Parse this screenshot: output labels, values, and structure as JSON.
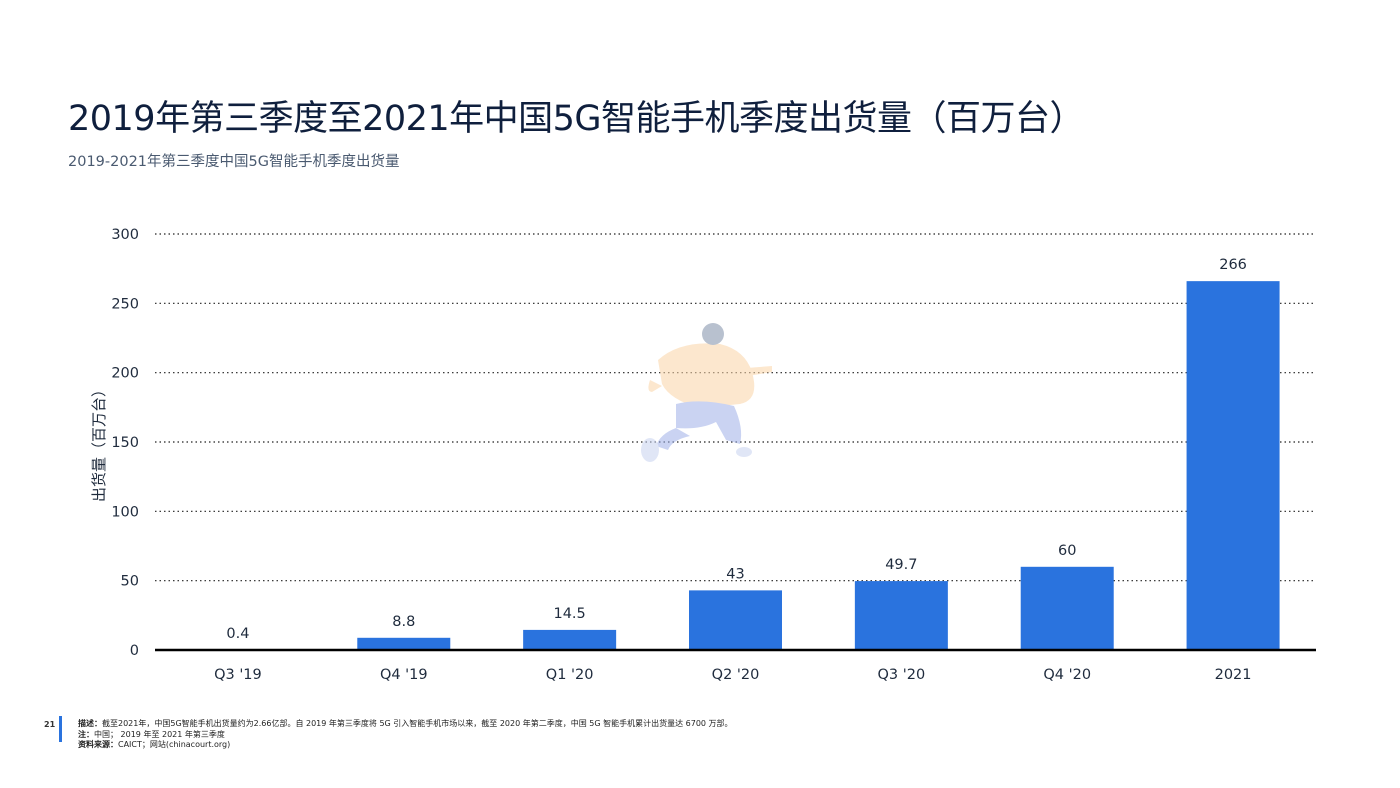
{
  "page": {
    "title": "2019年第三季度至2021年中国5G智能手机季度出货量（百万台）",
    "subtitle": "2019-2021年第三季度中国5G智能手机季度出货量"
  },
  "chart_data": {
    "type": "bar",
    "title": "2019年第三季度至2021年中国5G智能手机季度出货量（百万台）",
    "subtitle": "2019-2021年第三季度中国5G智能手机季度出货量",
    "categories": [
      "Q3 '19",
      "Q4 '19",
      "Q1 '20",
      "Q2 '20",
      "Q3 '20",
      "Q4 '20",
      "2021"
    ],
    "values": [
      0.4,
      8.8,
      14.5,
      43,
      49.7,
      60,
      266
    ],
    "value_labels": [
      "0.4",
      "8.8",
      "14.5",
      "43",
      "49.7",
      "60",
      "266"
    ],
    "xlabel": "",
    "ylabel": "出货量（百万台）",
    "ylim": [
      0,
      300
    ],
    "yticks": [
      0,
      50,
      100,
      150,
      200,
      250,
      300
    ],
    "grid": true,
    "legend": "none",
    "bar_color": "#2a73de"
  },
  "footer": {
    "page_number": "21",
    "desc_label": "描述：",
    "desc_text": "截至2021年，中国5G智能手机出货量约为2.66亿部。自 2019 年第三季度将 5G 引入智能手机市场以来，截至 2020 年第二季度，中国 5G 智能手机累计出货量达 6700 万部。",
    "note_label": "注：",
    "note_text": "中国；  2019 年至 2021 年第三季度",
    "source_label": "资料来源：",
    "source_text": "CAICT；网站(chinacourt.org)",
    "accent_color": "#2a73de"
  }
}
